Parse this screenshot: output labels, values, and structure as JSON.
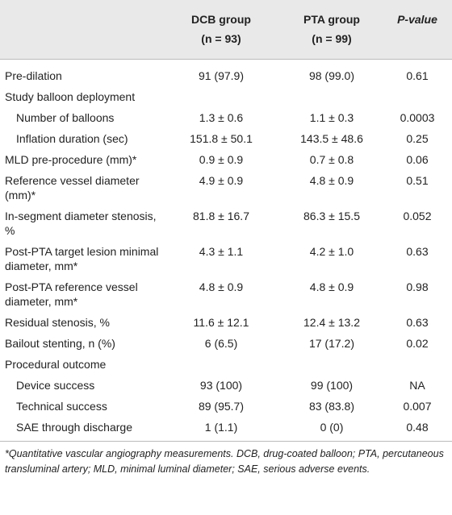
{
  "table": {
    "header": [
      {
        "name": ""
      },
      {
        "name": "DCB group",
        "n": "(n = 93)"
      },
      {
        "name": "PTA group",
        "n": "(n = 99)"
      },
      {
        "name": "P-value"
      }
    ],
    "rows": [
      {
        "label": "Pre-dilation",
        "dcb": "91 (97.9)",
        "pta": "98 (99.0)",
        "p": "0.61"
      },
      {
        "label": "Study balloon deployment",
        "rows": [
          {
            "label": "Number of balloons",
            "dcb": "1.3 ± 0.6",
            "pta": "1.1 ± 0.3",
            "p": "0.0003"
          },
          {
            "label": "Inflation duration (sec)",
            "dcb": "151.8 ± 50.1",
            "pta": "143.5 ± 48.6",
            "p": "0.25"
          }
        ]
      },
      {
        "label": "MLD pre-procedure (mm)*",
        "dcb": "0.9 ± 0.9",
        "pta": "0.7 ± 0.8",
        "p": "0.06"
      },
      {
        "label": "Reference vessel diameter (mm)*",
        "dcb": "4.9 ± 0.9",
        "pta": "4.8 ± 0.9",
        "p": "0.51"
      },
      {
        "label": "In-segment diameter stenosis, %",
        "dcb": "81.8 ± 16.7",
        "pta": "86.3 ± 15.5",
        "p": "0.052"
      },
      {
        "label": "Post-PTA target lesion minimal diameter, mm*",
        "dcb": "4.3 ± 1.1",
        "pta": "4.2 ± 1.0",
        "p": "0.63"
      },
      {
        "label": "Post-PTA reference vessel diameter, mm*",
        "dcb": "4.8 ± 0.9",
        "pta": "4.8 ± 0.9",
        "p": "0.98"
      },
      {
        "label": "Residual stenosis, %",
        "dcb": "11.6 ± 12.1",
        "pta": "12.4 ± 13.2",
        "p": "0.63"
      },
      {
        "label": "Bailout stenting, n (%)",
        "dcb": "6 (6.5)",
        "pta": "17 (17.2)",
        "p": "0.02"
      },
      {
        "label": "Procedural outcome",
        "rows": [
          {
            "label": "Device success",
            "dcb": "93 (100)",
            "pta": "99 (100)",
            "p": "NA"
          },
          {
            "label": "Technical success",
            "dcb": "89 (95.7)",
            "pta": "83 (83.8)",
            "p": "0.007"
          },
          {
            "label": "SAE through discharge",
            "dcb": "1 (1.1)",
            "pta": "0 (0)",
            "p": "0.48"
          }
        ]
      }
    ]
  },
  "footnote": "*Quantitative vascular angiography measurements. DCB, drug-coated balloon; PTA, percutaneous transluminal artery; MLD, minimal luminal diameter; SAE, serious adverse events."
}
